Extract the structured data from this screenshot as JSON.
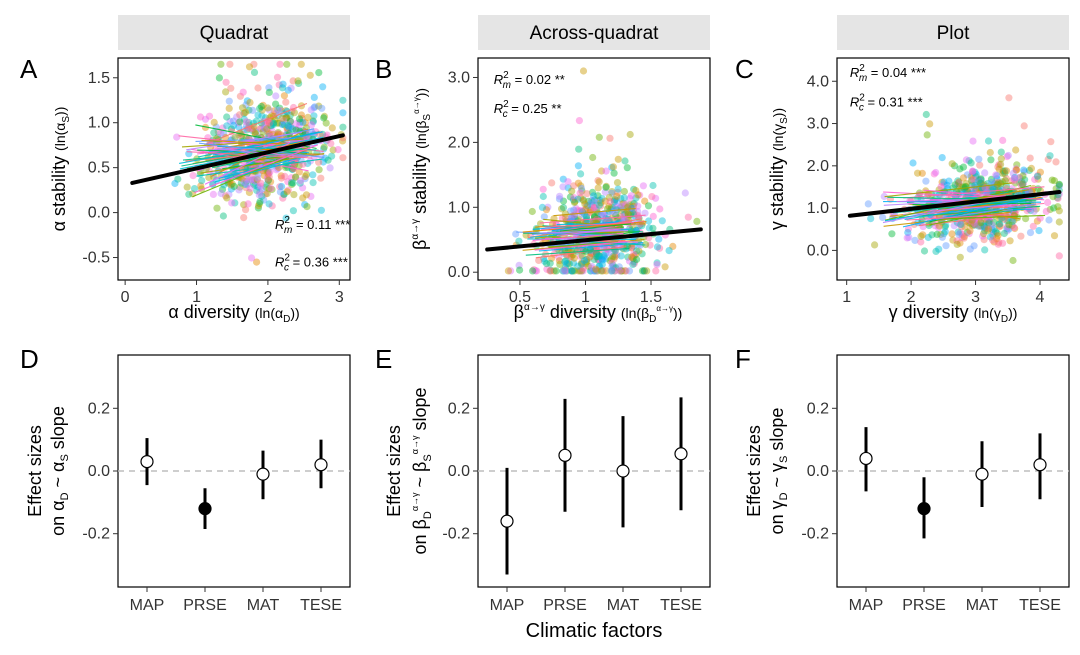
{
  "colors": {
    "panel_border": "#000000",
    "strip_bg": "#e5e5e5",
    "fit_line": "#000000",
    "zero_line": "#bdbdbd",
    "palette": [
      "#f8766d",
      "#e58700",
      "#c99800",
      "#a3a500",
      "#6bb100",
      "#00ba38",
      "#00bf7d",
      "#00c0af",
      "#00bcd8",
      "#00b0f6",
      "#619cff",
      "#b983ff",
      "#e76bf3",
      "#fd61d1",
      "#ff67a4"
    ]
  },
  "strips": [
    "Quadrat",
    "Across-quadrat",
    "Plot"
  ],
  "panel_letters": [
    "A",
    "B",
    "C",
    "D",
    "E",
    "F"
  ],
  "shared_xlabel": "Climatic factors",
  "chart_data": [
    {
      "type": "scatter",
      "panel": "A",
      "strip": "Quadrat",
      "xlabel": "α diversity (ln(αD))",
      "ylabel": "α stability (ln(αS))",
      "xlim": [
        -0.1,
        3.15
      ],
      "ylim": [
        -0.75,
        1.72
      ],
      "xticks": [
        0,
        1,
        2,
        3
      ],
      "yticks": [
        -0.5,
        0.0,
        0.5,
        1.0,
        1.5
      ],
      "ytick_labels": [
        "-0.5",
        "0.0",
        "0.5",
        "1.0",
        "1.5"
      ],
      "fit_line": {
        "x": [
          0.1,
          3.05
        ],
        "y": [
          0.33,
          0.86
        ]
      },
      "point_cloud": {
        "x_center": 2.0,
        "x_spread": 0.45,
        "y_center": 0.68,
        "y_spread": 0.3,
        "x_min": 0.05,
        "x_max": 3.05,
        "y_min": -0.6,
        "y_max": 1.65,
        "count": 700
      },
      "annotations": [
        {
          "base": "R",
          "sub": "m",
          "sup": "2",
          "text": " = 0.11 ***",
          "x": 2.1,
          "y": -0.18
        },
        {
          "base": "R",
          "sub": "c",
          "sup": "2",
          "text": " = 0.36 ***",
          "x": 2.1,
          "y": -0.6
        }
      ]
    },
    {
      "type": "scatter",
      "panel": "B",
      "strip": "Across-quadrat",
      "xlabel": "βα→γ diversity (ln(βDα→γ))",
      "ylabel": "βα→γ stability (ln(βSα→γ))",
      "xlim": [
        0.18,
        1.95
      ],
      "ylim": [
        -0.12,
        3.3
      ],
      "xticks": [
        0.5,
        1.0,
        1.5
      ],
      "yticks": [
        0.0,
        1.0,
        2.0,
        3.0
      ],
      "ytick_labels": [
        "0.0",
        "1.0",
        "2.0",
        "3.0"
      ],
      "fit_line": {
        "x": [
          0.25,
          1.88
        ],
        "y": [
          0.35,
          0.66
        ]
      },
      "point_cloud": {
        "x_center": 1.08,
        "x_spread": 0.22,
        "y_center": 0.6,
        "y_spread": 0.38,
        "x_min": 0.25,
        "x_max": 1.85,
        "y_min": 0.02,
        "y_max": 3.1,
        "count": 700
      },
      "annotations": [
        {
          "base": "R",
          "sub": "m",
          "sup": "2",
          "text": " = 0.02 **",
          "x": 0.3,
          "y": 2.9
        },
        {
          "base": "R",
          "sub": "c",
          "sup": "2",
          "text": " = 0.25 **",
          "x": 0.3,
          "y": 2.45
        }
      ]
    },
    {
      "type": "scatter",
      "panel": "C",
      "strip": "Plot",
      "xlabel": "γ diversity (ln(γD))",
      "ylabel": "γ stability (ln(γS))",
      "xlim": [
        0.85,
        4.45
      ],
      "ylim": [
        -0.7,
        4.55
      ],
      "xticks": [
        1,
        2,
        3,
        4
      ],
      "yticks": [
        0.0,
        1.0,
        2.0,
        3.0,
        4.0
      ],
      "ytick_labels": [
        "0.0",
        "1.0",
        "2.0",
        "3.0",
        "4.0"
      ],
      "fit_line": {
        "x": [
          1.05,
          4.3
        ],
        "y": [
          0.82,
          1.38
        ]
      },
      "point_cloud": {
        "x_center": 3.1,
        "x_spread": 0.55,
        "y_center": 1.1,
        "y_spread": 0.45,
        "x_min": 1.0,
        "x_max": 4.3,
        "y_min": -0.55,
        "y_max": 4.45,
        "count": 700
      },
      "annotations": [
        {
          "base": "R",
          "sub": "m",
          "sup": "2",
          "text": " = 0.04 ***",
          "x": 1.05,
          "y": 4.1
        },
        {
          "base": "R",
          "sub": "c",
          "sup": "2",
          "text": " = 0.31 ***",
          "x": 1.05,
          "y": 3.4
        }
      ]
    },
    {
      "type": "errorbar",
      "panel": "D",
      "ylabel_line1": "Effect sizes",
      "ylabel_line2": "on αD ~ αS slope",
      "categories": [
        "MAP",
        "PRSE",
        "MAT",
        "TESE"
      ],
      "ylim": [
        -0.37,
        0.37
      ],
      "yticks": [
        -0.2,
        0.0,
        0.2
      ],
      "ytick_labels": [
        "-0.2",
        "0.0",
        "0.2"
      ],
      "estimates": [
        0.03,
        -0.12,
        -0.01,
        0.02
      ],
      "lower": [
        -0.045,
        -0.185,
        -0.09,
        -0.055
      ],
      "upper": [
        0.105,
        -0.055,
        0.065,
        0.1
      ],
      "filled": [
        false,
        true,
        false,
        false
      ]
    },
    {
      "type": "errorbar",
      "panel": "E",
      "ylabel_line1": "Effect sizes",
      "ylabel_line2": "on βDα→γ ~ βSα→γ slope",
      "categories": [
        "MAP",
        "PRSE",
        "MAT",
        "TESE"
      ],
      "ylim": [
        -0.37,
        0.37
      ],
      "yticks": [
        -0.2,
        0.0,
        0.2
      ],
      "ytick_labels": [
        "-0.2",
        "0.0",
        "0.2"
      ],
      "estimates": [
        -0.16,
        0.05,
        0.0,
        0.055
      ],
      "lower": [
        -0.33,
        -0.13,
        -0.18,
        -0.125
      ],
      "upper": [
        0.01,
        0.23,
        0.175,
        0.235
      ],
      "filled": [
        false,
        false,
        false,
        false
      ]
    },
    {
      "type": "errorbar",
      "panel": "F",
      "ylabel_line1": "Effect sizes",
      "ylabel_line2": "on γD ~ γS slope",
      "categories": [
        "MAP",
        "PRSE",
        "MAT",
        "TESE"
      ],
      "ylim": [
        -0.37,
        0.37
      ],
      "yticks": [
        -0.2,
        0.0,
        0.2
      ],
      "ytick_labels": [
        "-0.2",
        "0.0",
        "0.2"
      ],
      "estimates": [
        0.04,
        -0.12,
        -0.01,
        0.02
      ],
      "lower": [
        -0.065,
        -0.215,
        -0.115,
        -0.09
      ],
      "upper": [
        0.14,
        -0.02,
        0.095,
        0.12
      ],
      "filled": [
        false,
        true,
        false,
        false
      ]
    }
  ]
}
